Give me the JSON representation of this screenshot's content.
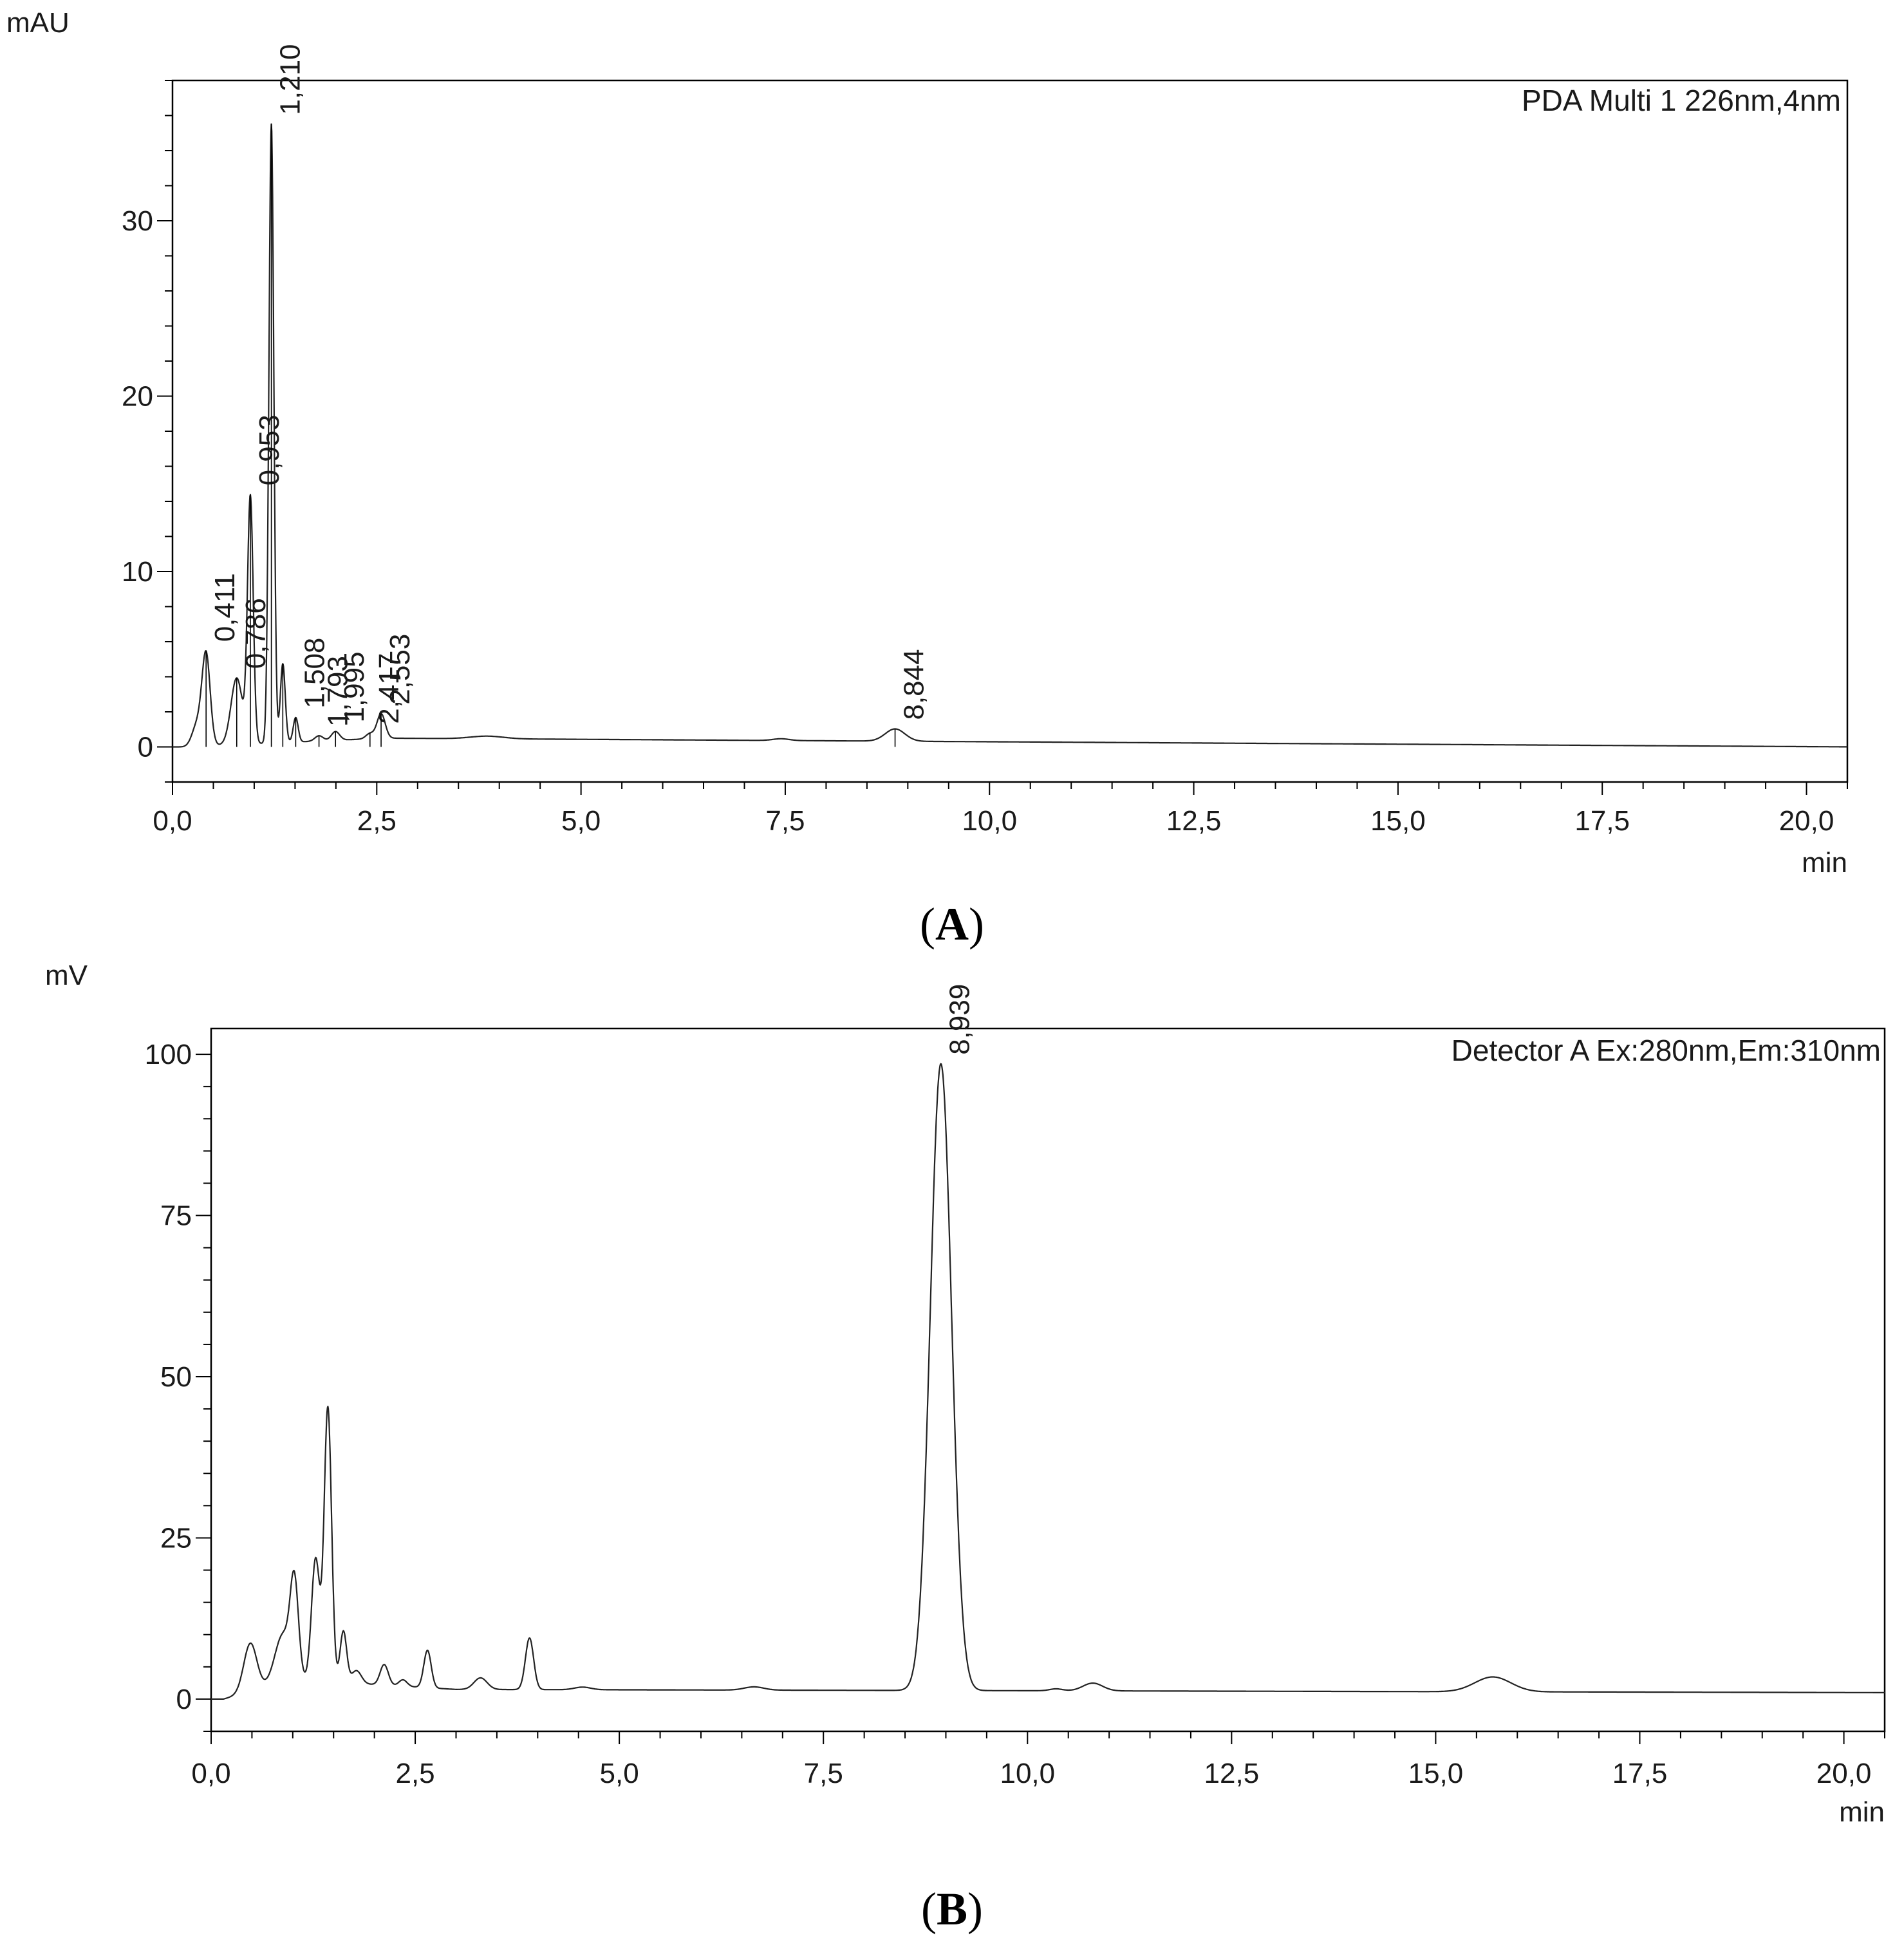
{
  "chart_data": [
    {
      "type": "line",
      "panel": "A",
      "detector_label": "PDA Multi 1 226nm,4nm",
      "ylabel": "mAU",
      "xlabel": "min",
      "xlim": [
        0,
        20.5
      ],
      "ylim": [
        -2,
        38
      ],
      "x_ticks": [
        "0,0",
        "2,5",
        "5,0",
        "7,5",
        "10,0",
        "12,5",
        "15,0",
        "17,5",
        "20,0"
      ],
      "y_ticks": [
        "0",
        "10",
        "20",
        "30"
      ],
      "grid": false,
      "peaks": [
        {
          "rt": 0.411,
          "height": 5.4,
          "label": "0,411"
        },
        {
          "rt": 0.786,
          "height": 3.8,
          "label": "0,786"
        },
        {
          "rt": 0.953,
          "height": 14.3,
          "label": "0,953"
        },
        {
          "rt": 1.21,
          "height": 35.5,
          "label": "1,210"
        },
        {
          "rt": 1.35,
          "height": 4.5,
          "label": ""
        },
        {
          "rt": 1.508,
          "height": 1.6,
          "label": "1,508"
        },
        {
          "rt": 1.793,
          "height": 0.4,
          "label": "1,793"
        },
        {
          "rt": 1.995,
          "height": 0.5,
          "label": "1,995"
        },
        {
          "rt": 2.417,
          "height": 0.3,
          "label": "2,417"
        },
        {
          "rt": 2.553,
          "height": 1.5,
          "label": "2,553"
        },
        {
          "rt": 8.844,
          "height": 0.9,
          "label": "8,844"
        }
      ]
    },
    {
      "type": "line",
      "panel": "B",
      "detector_label": "Detector A Ex:280nm,Em:310nm",
      "ylabel": "mV",
      "xlabel": "min",
      "xlim": [
        0,
        20.5
      ],
      "ylim": [
        -5,
        104
      ],
      "x_ticks": [
        "0,0",
        "2,5",
        "5,0",
        "7,5",
        "10,0",
        "12,5",
        "15,0",
        "17,5",
        "20,0"
      ],
      "y_ticks": [
        "0",
        "25",
        "50",
        "75",
        "100"
      ],
      "grid": false,
      "peaks": [
        {
          "rt": 0.48,
          "height": 7.5,
          "label": ""
        },
        {
          "rt": 0.88,
          "height": 8.0,
          "label": ""
        },
        {
          "rt": 1.02,
          "height": 17.0,
          "label": ""
        },
        {
          "rt": 1.28,
          "height": 21.0,
          "label": ""
        },
        {
          "rt": 1.43,
          "height": 43.0,
          "label": ""
        },
        {
          "rt": 1.62,
          "height": 8.0,
          "label": ""
        },
        {
          "rt": 2.12,
          "height": 3.5,
          "label": ""
        },
        {
          "rt": 2.65,
          "height": 6.0,
          "label": ""
        },
        {
          "rt": 3.3,
          "height": 2.0,
          "label": ""
        },
        {
          "rt": 3.9,
          "height": 8.5,
          "label": ""
        },
        {
          "rt": 8.939,
          "height": 98.0,
          "label": "8,939"
        },
        {
          "rt": 10.8,
          "height": 1.2,
          "label": ""
        },
        {
          "rt": 15.7,
          "height": 2.3,
          "label": ""
        }
      ]
    }
  ],
  "panels": {
    "a": {
      "label_open": "(",
      "label_letter": "A",
      "label_close": ")"
    },
    "b": {
      "label_open": "(",
      "label_letter": "B",
      "label_close": ")"
    }
  }
}
